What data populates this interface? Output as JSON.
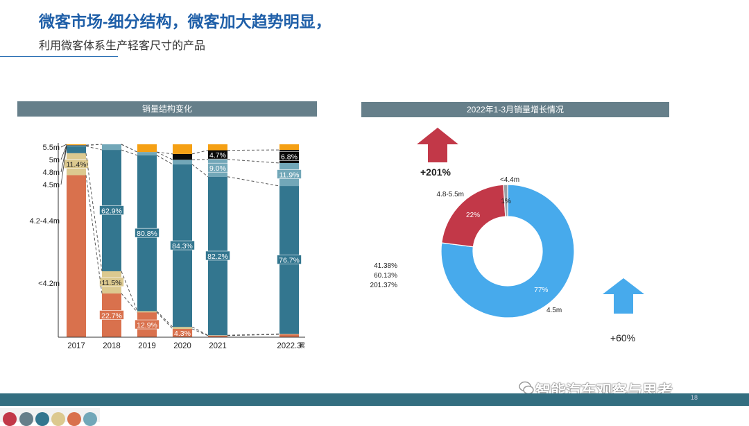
{
  "header": {
    "title": "微客市场-细分结构，微客加大趋势明显，",
    "subtitle": "利用微客体系生产轻客尺寸的产品"
  },
  "left_panel": {
    "title": "销量结构变化"
  },
  "right_panel": {
    "title": "2022年1-3月销量增长情况"
  },
  "footer": {
    "page_number": "18",
    "watermark": "智能汽车观察与思考"
  },
  "colors": {
    "header_bar": "#667f8a",
    "lt42": "#d9714d",
    "s42_44": "#dcc98f",
    "s45": "#33768f",
    "s48": "#72a7b8",
    "s5": "#0a0a0a",
    "s55": "#f5a014",
    "donut_blue": "#47aaec",
    "donut_red": "#c23848",
    "donut_gray": "#9aa0a6"
  },
  "chart_data": [
    {
      "type": "bar",
      "stacked": true,
      "title": "销量结构变化",
      "categories": [
        "2017",
        "2018",
        "2019",
        "2020",
        "2021",
        "2022.3"
      ],
      "x_suffix_label": "累",
      "ylim": [
        0,
        100
      ],
      "series": [
        {
          "name": "<4.2m",
          "color_key": "lt42",
          "values": [
            84.0,
            22.7,
            12.9,
            4.3,
            0.8,
            1.5
          ],
          "labels": [
            "",
            "22.7%",
            "12.9%",
            "4.3%",
            "",
            ""
          ]
        },
        {
          "name": "4.2-4.4m",
          "color_key": "s42_44",
          "values": [
            11.4,
            11.5,
            0.6,
            1.0,
            0.2,
            0.2
          ],
          "labels": [
            "11.4%",
            "11.5%",
            "",
            "",
            "",
            ""
          ]
        },
        {
          "name": "4.5m",
          "color_key": "s45",
          "values": [
            3.6,
            62.9,
            80.8,
            84.3,
            82.2,
            76.7
          ],
          "labels": [
            "",
            "62.9%",
            "80.8%",
            "84.3%",
            "82.2%",
            "76.7%"
          ]
        },
        {
          "name": "4.8m",
          "color_key": "s48",
          "values": [
            0.4,
            2.9,
            1.7,
            2.4,
            9.0,
            11.9
          ],
          "labels": [
            "",
            "",
            "",
            "",
            "9.0%",
            "11.9%"
          ]
        },
        {
          "name": "5m",
          "color_key": "s5",
          "values": [
            0.2,
            0.0,
            0.0,
            3.0,
            4.7,
            6.8
          ],
          "labels": [
            "",
            "",
            "",
            "",
            "4.7%",
            "6.8%"
          ]
        },
        {
          "name": "5.5m",
          "color_key": "s55",
          "values": [
            0.4,
            0.0,
            4.0,
            5.0,
            3.1,
            2.9
          ],
          "labels": [
            "",
            "",
            "",
            "",
            "",
            ""
          ]
        }
      ]
    },
    {
      "type": "pie",
      "donut": true,
      "title": "2022年1-3月销量增长情况",
      "slices": [
        {
          "name": "4.5m",
          "value": 77,
          "label": "77%",
          "color_key": "donut_blue"
        },
        {
          "name": "4.8-5.5m",
          "value": 22,
          "label": "22%",
          "color_key": "donut_red"
        },
        {
          "name": "<4.4m",
          "value": 1,
          "label": "1%",
          "color_key": "donut_gray"
        }
      ],
      "side_values": [
        "41.38%",
        "60.13%",
        "201.37%"
      ],
      "growth_up_red": "+201%",
      "growth_up_blue": "+60%"
    }
  ]
}
